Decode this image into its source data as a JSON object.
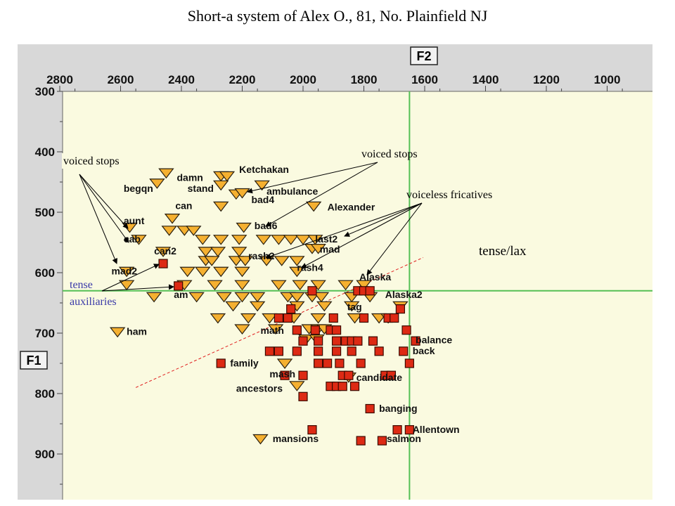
{
  "title": "Short-a system of Alex O., 81, No. Plainfield NJ",
  "colors": {
    "panel": "#d8d8d8",
    "plot_bg": "#fafae0",
    "mean_line": "#55c055",
    "lax_fill": "#f5b030",
    "tense_fill": "#dd2a14",
    "divider": "#e02020",
    "tense_aux_text": "#3a3aa8"
  },
  "chart_data": {
    "type": "scatter",
    "title": "Short-a system of Alex O., 81, No. Plainfield NJ",
    "xlabel": "F2",
    "ylabel": "F1",
    "x_axis": {
      "reversed": true,
      "position": "top",
      "range": [
        2800,
        800
      ],
      "ticks": [
        2800,
        2600,
        2400,
        2200,
        2000,
        1800,
        1600,
        1400,
        1200,
        1000
      ]
    },
    "y_axis": {
      "reversed": true,
      "range": [
        300,
        950
      ],
      "ticks": [
        300,
        400,
        500,
        600,
        700,
        800,
        900
      ]
    },
    "grand_mean": {
      "F2": 1650,
      "F1": 630
    },
    "tense_lax_line": {
      "from": {
        "F2": 2550,
        "F1": 790
      },
      "to": {
        "F2": 1605,
        "F1": 575
      }
    },
    "series": [
      {
        "marker": "triangle-down",
        "points": [
          [
            2450,
            435
          ],
          [
            2480,
            452
          ],
          [
            2270,
            440
          ],
          [
            2250,
            440
          ],
          [
            2270,
            455
          ],
          [
            2220,
            470
          ],
          [
            2200,
            468
          ],
          [
            2135,
            455
          ],
          [
            2430,
            510
          ],
          [
            2270,
            490
          ],
          [
            1965,
            490
          ],
          [
            2570,
            525
          ],
          [
            2440,
            530
          ],
          [
            2390,
            530
          ],
          [
            2360,
            530
          ],
          [
            2195,
            525
          ],
          [
            2540,
            545
          ],
          [
            2330,
            545
          ],
          [
            2270,
            545
          ],
          [
            2210,
            545
          ],
          [
            2130,
            545
          ],
          [
            2080,
            545
          ],
          [
            2040,
            545
          ],
          [
            2000,
            545
          ],
          [
            1960,
            545
          ],
          [
            2460,
            565
          ],
          [
            2320,
            565
          ],
          [
            2280,
            565
          ],
          [
            2210,
            565
          ],
          [
            1970,
            560
          ],
          [
            1950,
            560
          ],
          [
            2320,
            580
          ],
          [
            2300,
            580
          ],
          [
            2220,
            580
          ],
          [
            2190,
            580
          ],
          [
            2120,
            580
          ],
          [
            2070,
            580
          ],
          [
            2020,
            580
          ],
          [
            2580,
            598
          ],
          [
            2380,
            598
          ],
          [
            2330,
            598
          ],
          [
            2270,
            598
          ],
          [
            2200,
            598
          ],
          [
            2020,
            598
          ],
          [
            2580,
            620
          ],
          [
            2390,
            620
          ],
          [
            2290,
            620
          ],
          [
            2200,
            620
          ],
          [
            2080,
            620
          ],
          [
            2010,
            620
          ],
          [
            1950,
            620
          ],
          [
            1860,
            620
          ],
          [
            1800,
            620
          ],
          [
            2490,
            640
          ],
          [
            2350,
            640
          ],
          [
            2260,
            640
          ],
          [
            2200,
            640
          ],
          [
            2150,
            640
          ],
          [
            2050,
            640
          ],
          [
            2020,
            640
          ],
          [
            1970,
            640
          ],
          [
            1940,
            640
          ],
          [
            1840,
            640
          ],
          [
            1780,
            640
          ],
          [
            2230,
            655
          ],
          [
            2150,
            655
          ],
          [
            2020,
            655
          ],
          [
            1930,
            655
          ],
          [
            1840,
            655
          ],
          [
            1680,
            655
          ],
          [
            2280,
            675
          ],
          [
            2180,
            675
          ],
          [
            2110,
            675
          ],
          [
            2030,
            675
          ],
          [
            1950,
            675
          ],
          [
            1830,
            675
          ],
          [
            1750,
            675
          ],
          [
            1720,
            675
          ],
          [
            2200,
            693
          ],
          [
            2090,
            693
          ],
          [
            1980,
            693
          ],
          [
            1950,
            693
          ],
          [
            1930,
            693
          ],
          [
            2610,
            698
          ],
          [
            1990,
            710
          ],
          [
            1955,
            710
          ],
          [
            2060,
            750
          ],
          [
            1850,
            773
          ],
          [
            2020,
            787
          ],
          [
            2140,
            875
          ]
        ]
      },
      {
        "marker": "square",
        "points": [
          [
            2460,
            585
          ],
          [
            2410,
            622
          ],
          [
            1970,
            630
          ],
          [
            1820,
            630
          ],
          [
            1800,
            630
          ],
          [
            1780,
            630
          ],
          [
            2040,
            660
          ],
          [
            1680,
            660
          ],
          [
            2080,
            675
          ],
          [
            2050,
            675
          ],
          [
            1900,
            675
          ],
          [
            1800,
            675
          ],
          [
            1720,
            675
          ],
          [
            1700,
            675
          ],
          [
            2020,
            695
          ],
          [
            1960,
            695
          ],
          [
            1910,
            695
          ],
          [
            1890,
            695
          ],
          [
            1660,
            695
          ],
          [
            2000,
            713
          ],
          [
            1950,
            713
          ],
          [
            1890,
            713
          ],
          [
            1860,
            713
          ],
          [
            1840,
            713
          ],
          [
            1820,
            713
          ],
          [
            1770,
            713
          ],
          [
            1630,
            713
          ],
          [
            2110,
            730
          ],
          [
            2080,
            730
          ],
          [
            2020,
            730
          ],
          [
            1950,
            730
          ],
          [
            1890,
            730
          ],
          [
            1840,
            730
          ],
          [
            1750,
            730
          ],
          [
            1670,
            730
          ],
          [
            2270,
            750
          ],
          [
            1950,
            750
          ],
          [
            1920,
            750
          ],
          [
            1880,
            750
          ],
          [
            1810,
            750
          ],
          [
            1650,
            750
          ],
          [
            2060,
            770
          ],
          [
            2000,
            770
          ],
          [
            1870,
            770
          ],
          [
            1850,
            770
          ],
          [
            1730,
            770
          ],
          [
            1710,
            770
          ],
          [
            1910,
            788
          ],
          [
            1890,
            788
          ],
          [
            1870,
            788
          ],
          [
            1830,
            788
          ],
          [
            2000,
            805
          ],
          [
            1780,
            825
          ],
          [
            1970,
            860
          ],
          [
            1690,
            860
          ],
          [
            1650,
            860
          ],
          [
            1810,
            878
          ],
          [
            1740,
            878
          ]
        ]
      }
    ],
    "word_labels": [
      {
        "text": "damn",
        "F2": 2415,
        "F1": 448
      },
      {
        "text": "Ketchakan",
        "F2": 2210,
        "F1": 435
      },
      {
        "text": "begqn",
        "F2": 2590,
        "F1": 466
      },
      {
        "text": "stand",
        "F2": 2380,
        "F1": 466
      },
      {
        "text": "ambulance",
        "F2": 2120,
        "F1": 471
      },
      {
        "text": "bad4",
        "F2": 2170,
        "F1": 485
      },
      {
        "text": "can",
        "F2": 2420,
        "F1": 495
      },
      {
        "text": "Alexander",
        "F2": 1920,
        "F1": 497
      },
      {
        "text": "aunt",
        "F2": 2590,
        "F1": 520
      },
      {
        "text": "bad6",
        "F2": 2160,
        "F1": 528
      },
      {
        "text": "cab",
        "F2": 2590,
        "F1": 550
      },
      {
        "text": "last2",
        "F2": 1960,
        "F1": 550
      },
      {
        "text": "can2",
        "F2": 2490,
        "F1": 570
      },
      {
        "text": "mad",
        "F2": 1945,
        "F1": 567
      },
      {
        "text": "rash2",
        "F2": 2180,
        "F1": 578
      },
      {
        "text": "rash4",
        "F2": 2020,
        "F1": 597
      },
      {
        "text": "mad2",
        "F2": 2630,
        "F1": 603
      },
      {
        "text": "Alaska",
        "F2": 1815,
        "F1": 613
      },
      {
        "text": "am",
        "F2": 2425,
        "F1": 642
      },
      {
        "text": "Alaska2",
        "F2": 1730,
        "F1": 642
      },
      {
        "text": "tag",
        "F2": 1855,
        "F1": 662
      },
      {
        "text": "ham",
        "F2": 2580,
        "F1": 703
      },
      {
        "text": "math",
        "F2": 2140,
        "F1": 701
      },
      {
        "text": "balance",
        "F2": 1630,
        "F1": 717
      },
      {
        "text": "back",
        "F2": 1640,
        "F1": 735
      },
      {
        "text": "family",
        "F2": 2240,
        "F1": 755
      },
      {
        "text": "mash",
        "F2": 2110,
        "F1": 773
      },
      {
        "text": "candidate",
        "F2": 1825,
        "F1": 779
      },
      {
        "text": "ancestors",
        "F2": 2220,
        "F1": 797
      },
      {
        "text": "banging",
        "F2": 1750,
        "F1": 830
      },
      {
        "text": "Allentown",
        "F2": 1640,
        "F1": 865
      },
      {
        "text": "mansions",
        "F2": 2100,
        "F1": 880
      },
      {
        "text": "salmon",
        "F2": 1725,
        "F1": 880
      }
    ]
  },
  "annotations": {
    "voiced_stops_left": "voiced stops",
    "voiced_stops_top": "voiced stops",
    "voiceless_fricatives": "voiceless fricatives",
    "tense_lax": "tense/lax",
    "tense": "tense",
    "auxiliaries": "auxiliaries"
  }
}
